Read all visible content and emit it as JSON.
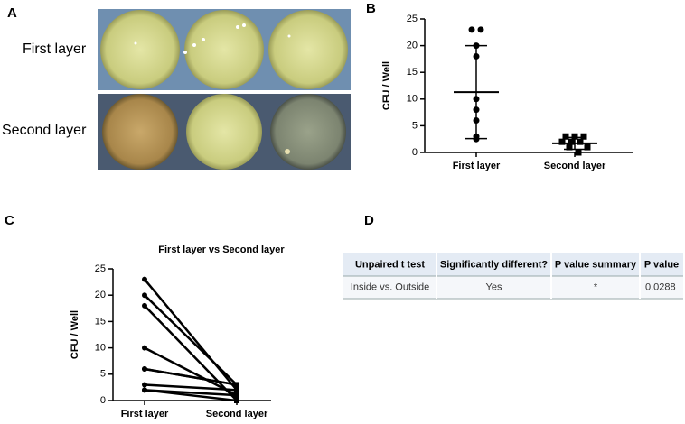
{
  "panels": {
    "a": {
      "label": "A",
      "rows": [
        "First layer",
        "Second layer"
      ]
    },
    "b": {
      "label": "B"
    },
    "c": {
      "label": "C"
    },
    "d": {
      "label": "D"
    }
  },
  "chart_data": [
    {
      "type": "dot",
      "y_label": "CFU / Well",
      "categories": [
        "First layer",
        "Second layer"
      ],
      "points": [
        [
          23,
          23,
          20,
          18,
          10,
          8,
          6,
          3,
          2.5
        ],
        [
          3,
          3,
          3,
          2,
          2,
          2,
          1,
          1,
          0
        ]
      ],
      "mean": [
        11.3,
        1.7
      ],
      "sd": [
        8.7,
        1.1
      ],
      "ylim": [
        0,
        25
      ],
      "yticks": [
        0,
        5,
        10,
        15,
        20,
        25
      ],
      "color": "#000000"
    },
    {
      "type": "paired",
      "title": "First layer vs Second layer",
      "y_label": "CFU / Well",
      "categories": [
        "First layer",
        "Second layer"
      ],
      "points": [
        [
          23,
          20,
          18,
          10,
          6,
          6,
          3,
          2,
          2
        ],
        [
          2,
          3,
          0,
          1,
          3,
          3,
          2,
          1,
          0
        ]
      ],
      "ylim": [
        0,
        25
      ],
      "yticks": [
        0,
        5,
        10,
        15,
        20,
        25
      ],
      "color": "#000000"
    }
  ],
  "table": {
    "header": [
      "Unpaired t test",
      "Significantly different?",
      "P value summary",
      "P value"
    ],
    "rows": [
      [
        "Inside vs. Outside",
        "Yes",
        "*",
        "0.0288"
      ]
    ]
  }
}
